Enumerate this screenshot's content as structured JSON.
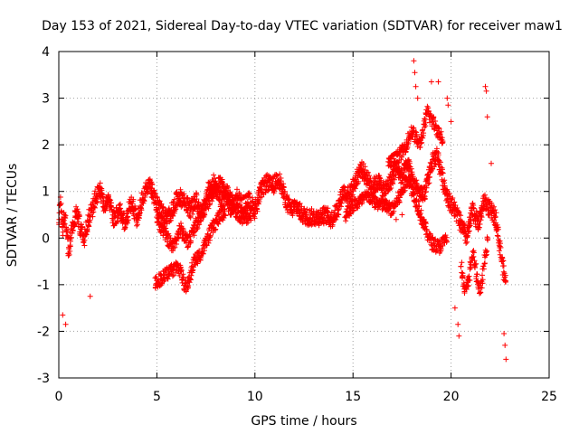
{
  "chart_data": {
    "type": "scatter",
    "title": "Day 153 of 2021, Sidereal Day-to-day VTEC variation (SDTVAR) for receiver maw1",
    "xlabel": "GPS time / hours",
    "ylabel": "SDTVAR / TECUs",
    "xlim": [
      0,
      25
    ],
    "ylim": [
      -3,
      4
    ],
    "xticks": [
      "0",
      "5",
      "10",
      "15",
      "20",
      "25"
    ],
    "yticks": [
      "-3",
      "-2",
      "-1",
      "0",
      "1",
      "2",
      "3",
      "4"
    ],
    "grid": true,
    "marker": "+",
    "color": "#ff0000",
    "series": [
      {
        "name": "SDTVAR",
        "trend": [
          [
            0.0,
            0.4
          ],
          [
            0.1,
            0.7
          ],
          [
            0.2,
            0.2
          ],
          [
            0.3,
            0.5
          ],
          [
            0.5,
            -0.3
          ],
          [
            0.7,
            0.3
          ],
          [
            0.9,
            0.6
          ],
          [
            1.1,
            0.2
          ],
          [
            1.3,
            0.0
          ],
          [
            1.5,
            0.4
          ],
          [
            1.7,
            0.6
          ],
          [
            1.9,
            0.9
          ],
          [
            2.1,
            1.0
          ],
          [
            2.3,
            0.7
          ],
          [
            2.5,
            0.9
          ],
          [
            2.8,
            0.4
          ],
          [
            3.1,
            0.6
          ],
          [
            3.4,
            0.3
          ],
          [
            3.7,
            0.8
          ],
          [
            4.0,
            0.4
          ],
          [
            4.3,
            0.9
          ],
          [
            4.6,
            1.2
          ],
          [
            4.9,
            0.8
          ],
          [
            5.2,
            0.6
          ],
          [
            5.5,
            0.4
          ],
          [
            5.8,
            0.6
          ],
          [
            6.1,
            0.9
          ],
          [
            6.4,
            0.8
          ],
          [
            6.7,
            0.6
          ],
          [
            7.0,
            0.8
          ],
          [
            7.3,
            0.5
          ],
          [
            7.6,
            1.0
          ],
          [
            7.9,
            1.2
          ],
          [
            8.2,
            0.8
          ],
          [
            8.5,
            0.9
          ],
          [
            8.8,
            0.6
          ],
          [
            9.1,
            0.9
          ],
          [
            9.4,
            0.7
          ],
          [
            9.7,
            0.8
          ],
          [
            10.0,
            0.6
          ],
          [
            10.3,
            1.0
          ],
          [
            10.6,
            1.2
          ],
          [
            10.9,
            1.1
          ],
          [
            11.2,
            1.3
          ],
          [
            11.5,
            0.9
          ],
          [
            11.8,
            0.6
          ],
          [
            12.1,
            0.7
          ],
          [
            12.4,
            0.5
          ],
          [
            12.7,
            0.45
          ],
          [
            13.0,
            0.45
          ],
          [
            13.3,
            0.45
          ],
          [
            13.6,
            0.5
          ],
          [
            13.9,
            0.4
          ],
          [
            14.2,
            0.6
          ],
          [
            14.5,
            1.0
          ],
          [
            14.8,
            0.9
          ],
          [
            15.1,
            1.2
          ],
          [
            15.4,
            1.5
          ],
          [
            15.7,
            1.3
          ],
          [
            16.0,
            1.1
          ],
          [
            16.3,
            1.2
          ],
          [
            16.6,
            1.0
          ],
          [
            16.9,
            1.2
          ],
          [
            17.2,
            1.5
          ],
          [
            17.5,
            1.3
          ],
          [
            17.8,
            1.6
          ],
          [
            18.1,
            1.2
          ],
          [
            18.4,
            0.9
          ],
          [
            18.7,
            1.0
          ],
          [
            19.0,
            1.6
          ],
          [
            19.3,
            1.8
          ],
          [
            19.6,
            1.2
          ],
          [
            19.9,
            0.8
          ],
          [
            20.2,
            0.6
          ],
          [
            20.5,
            0.3
          ],
          [
            20.8,
            0.0
          ],
          [
            21.1,
            0.6
          ],
          [
            21.4,
            0.3
          ],
          [
            21.7,
            0.8
          ],
          [
            22.0,
            0.6
          ],
          [
            22.3,
            0.4
          ],
          [
            22.6,
            -0.5
          ],
          [
            22.8,
            -1.0
          ]
        ],
        "branches": [
          [
            [
              4.9,
              -0.95
            ],
            [
              5.3,
              -0.85
            ],
            [
              5.7,
              -0.7
            ],
            [
              6.1,
              -0.6
            ],
            [
              6.5,
              -1.1
            ],
            [
              6.9,
              -0.5
            ],
            [
              7.3,
              -0.3
            ],
            [
              7.7,
              0.1
            ],
            [
              8.1,
              0.4
            ],
            [
              8.5,
              0.6
            ]
          ],
          [
            [
              5.0,
              0.4
            ],
            [
              5.4,
              0.1
            ],
            [
              5.8,
              -0.2
            ],
            [
              6.2,
              0.2
            ],
            [
              6.6,
              -0.1
            ],
            [
              7.0,
              0.3
            ],
            [
              7.4,
              0.6
            ],
            [
              7.8,
              0.9
            ],
            [
              8.2,
              1.2
            ],
            [
              8.6,
              1.0
            ],
            [
              9.0,
              0.6
            ],
            [
              9.4,
              0.4
            ],
            [
              9.8,
              0.5
            ]
          ],
          [
            [
              14.6,
              0.5
            ],
            [
              15.0,
              0.7
            ],
            [
              15.4,
              0.8
            ],
            [
              15.8,
              0.9
            ],
            [
              16.2,
              0.75
            ],
            [
              16.6,
              0.7
            ],
            [
              17.0,
              0.6
            ],
            [
              17.4,
              0.9
            ],
            [
              17.8,
              1.3
            ],
            [
              18.2,
              0.8
            ],
            [
              18.6,
              0.3
            ],
            [
              19.0,
              -0.1
            ],
            [
              19.4,
              -0.2
            ],
            [
              19.8,
              0.0
            ]
          ],
          [
            [
              16.8,
              1.6
            ],
            [
              17.2,
              1.7
            ],
            [
              17.6,
              1.9
            ],
            [
              18.0,
              2.3
            ],
            [
              18.4,
              2.0
            ],
            [
              18.8,
              2.7
            ],
            [
              19.2,
              2.4
            ],
            [
              19.6,
              2.1
            ]
          ],
          [
            [
              20.5,
              -0.5
            ],
            [
              20.7,
              -1.2
            ],
            [
              20.9,
              -0.9
            ],
            [
              21.1,
              -0.3
            ],
            [
              21.3,
              -0.8
            ],
            [
              21.5,
              -1.2
            ],
            [
              21.7,
              -0.5
            ],
            [
              21.9,
              0.0
            ]
          ]
        ],
        "spread": 0.18,
        "outliers": [
          [
            18.1,
            3.8
          ],
          [
            18.15,
            3.55
          ],
          [
            18.2,
            3.25
          ],
          [
            18.3,
            3.0
          ],
          [
            19.0,
            3.35
          ],
          [
            19.35,
            3.35
          ],
          [
            19.8,
            3.0
          ],
          [
            19.85,
            2.85
          ],
          [
            20.0,
            2.5
          ],
          [
            21.75,
            3.25
          ],
          [
            21.8,
            3.15
          ],
          [
            21.85,
            2.6
          ],
          [
            22.05,
            1.6
          ],
          [
            0.2,
            -1.65
          ],
          [
            0.35,
            -1.85
          ],
          [
            20.35,
            -1.85
          ],
          [
            20.4,
            -2.1
          ],
          [
            22.75,
            -2.3
          ],
          [
            22.8,
            -2.6
          ],
          [
            22.7,
            -2.05
          ],
          [
            17.2,
            0.4
          ],
          [
            17.5,
            0.5
          ],
          [
            1.6,
            -1.25
          ],
          [
            20.2,
            -1.5
          ]
        ]
      }
    ]
  }
}
